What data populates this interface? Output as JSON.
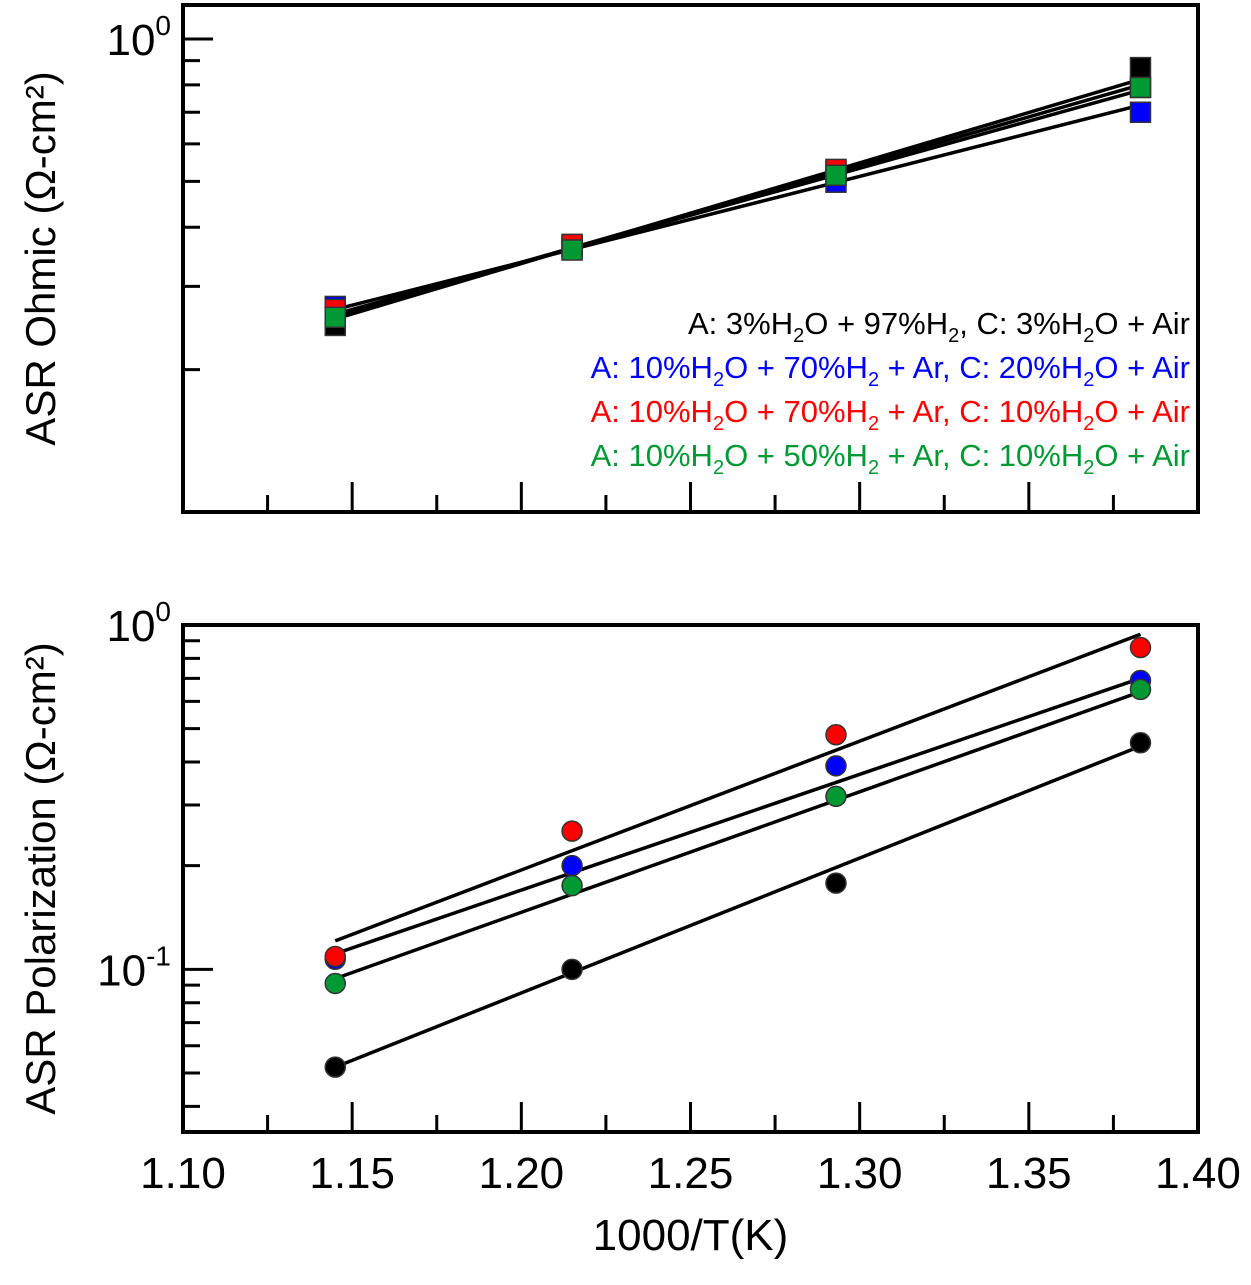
{
  "chart_data": [
    {
      "type": "scatter",
      "title": "",
      "ylabel": "ASR Ohmic (Ω-cm²)",
      "xlabel": "",
      "yscale": "log",
      "ylim": [
        0.1,
        1.18
      ],
      "xlim": [
        1.1,
        1.4
      ],
      "xticks_labeled": false,
      "yticks": [
        {
          "value": 1.0,
          "label": "10",
          "exp": "0"
        }
      ],
      "marker": "square",
      "grid": false,
      "legend_position": "right",
      "series": [
        {
          "name": "A: 3%H2O + 97%H2, C: 3%H2O + Air",
          "color": "#000000",
          "x": [
            1.145,
            1.215,
            1.293,
            1.383
          ],
          "y": [
            0.248,
            0.365,
            0.525,
            0.87
          ],
          "fit": [
            0.256,
            0.362,
            0.532,
            0.822
          ]
        },
        {
          "name": "A: 10%H2O + 70%H2 + Ar, C: 20%H2O + Air",
          "color": "#0000ff",
          "x": [
            1.145,
            1.215,
            1.293,
            1.383
          ],
          "y": [
            0.272,
            0.362,
            0.498,
            0.7
          ],
          "fit": [
            0.268,
            0.36,
            0.5,
            0.725
          ]
        },
        {
          "name": "A: 10%H2O + 70%H2 + Ar, C: 10%H2O + Air",
          "color": "#ff0000",
          "x": [
            1.145,
            1.215,
            1.293,
            1.383
          ],
          "y": [
            0.268,
            0.368,
            0.53,
            0.79
          ],
          "fit": [
            0.262,
            0.366,
            0.535,
            0.78
          ]
        },
        {
          "name": "A: 10%H2O + 50%H2 + Ar, C: 10%H2O + Air",
          "color": "#009933",
          "x": [
            1.145,
            1.215,
            1.293,
            1.383
          ],
          "y": [
            0.258,
            0.358,
            0.515,
            0.79
          ],
          "fit": [
            0.26,
            0.362,
            0.522,
            0.8
          ]
        }
      ],
      "legend": [
        {
          "parts": [
            "A: 3%H",
            "2",
            "O + 97%H",
            "2",
            ", C: 3%H",
            "2",
            "O + Air"
          ],
          "color": "#000000"
        },
        {
          "parts": [
            "A: 10%H",
            "2",
            "O + 70%H",
            "2",
            " + Ar, C: 20%H",
            "2",
            "O + Air"
          ],
          "color": "#0000ff"
        },
        {
          "parts": [
            "A: 10%H",
            "2",
            "O + 70%H",
            "2",
            " + Ar, C: 10%H",
            "2",
            "O + Air"
          ],
          "color": "#ff0000"
        },
        {
          "parts": [
            "A: 10%H",
            "2",
            "O + 50%H",
            "2",
            " + Ar, C: 10%H",
            "2",
            "O + Air"
          ],
          "color": "#009933"
        }
      ]
    },
    {
      "type": "scatter",
      "title": "",
      "ylabel": "ASR Polarization (Ω-cm²)",
      "xlabel": "1000/T(K)",
      "yscale": "log",
      "ylim": [
        0.0337,
        1.0
      ],
      "xlim": [
        1.1,
        1.4
      ],
      "xticks_labeled": true,
      "xticks": [
        1.1,
        1.15,
        1.2,
        1.25,
        1.3,
        1.35,
        1.4
      ],
      "xtick_labels": [
        "1.10",
        "1.15",
        "1.20",
        "1.25",
        "1.30",
        "1.35",
        "1.40"
      ],
      "yticks": [
        {
          "value": 1.0,
          "label": "10",
          "exp": "0"
        },
        {
          "value": 0.1,
          "label": "10",
          "exp": "-1"
        }
      ],
      "marker": "circle",
      "grid": false,
      "series": [
        {
          "name": "A: 3%H2O + 97%H2, C: 3%H2O + Air",
          "color": "#000000",
          "x": [
            1.145,
            1.215,
            1.293,
            1.383
          ],
          "y": [
            0.052,
            0.1,
            0.178,
            0.455
          ],
          "fit": [
            0.052,
            0.093,
            0.182,
            0.445
          ]
        },
        {
          "name": "A: 10%H2O + 70%H2 + Ar, C: 20%H2O + Air",
          "color": "#0000ff",
          "x": [
            1.145,
            1.215,
            1.293,
            1.383
          ],
          "y": [
            0.107,
            0.2,
            0.39,
            0.69
          ],
          "fit": [
            0.111,
            0.185,
            0.355,
            0.7
          ]
        },
        {
          "name": "A: 10%H2O + 70%H2 + Ar, C: 10%H2O + Air",
          "color": "#ff0000",
          "x": [
            1.145,
            1.215,
            1.293,
            1.383
          ],
          "y": [
            0.109,
            0.252,
            0.48,
            0.86
          ],
          "fit": [
            0.121,
            0.225,
            0.42,
            0.94
          ]
        },
        {
          "name": "A: 10%H2O + 50%H2 + Ar, C: 10%H2O + Air",
          "color": "#009933",
          "x": [
            1.145,
            1.215,
            1.293,
            1.383
          ],
          "y": [
            0.091,
            0.175,
            0.318,
            0.65
          ],
          "fit": [
            0.094,
            0.168,
            0.325,
            0.64
          ]
        }
      ]
    }
  ]
}
